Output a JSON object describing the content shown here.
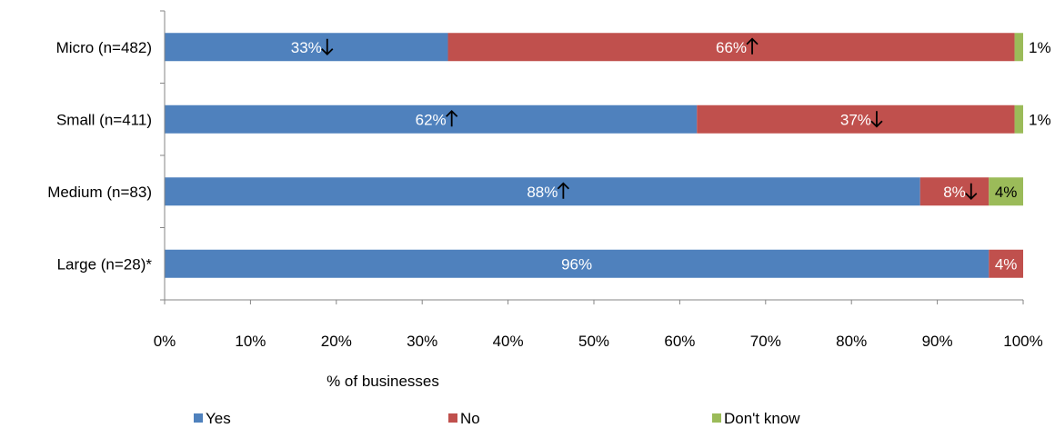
{
  "chart_data": {
    "type": "bar",
    "orientation": "horizontal",
    "stacked": true,
    "categories": [
      "Micro (n=482)",
      "Small (n=411)",
      "Medium (n=83)",
      "Large (n=28)*"
    ],
    "series": [
      {
        "name": "Yes",
        "color": "#4F81BD",
        "values": [
          33,
          62,
          88,
          96
        ],
        "labels": [
          "33%",
          "62%",
          "88%",
          "96%"
        ],
        "arrows": [
          "down",
          "up",
          "up",
          ""
        ]
      },
      {
        "name": "No",
        "color": "#C0504D",
        "values": [
          66,
          37,
          8,
          4
        ],
        "labels": [
          "66%",
          "37%",
          "8%",
          "4%"
        ],
        "arrows": [
          "up",
          "down",
          "down",
          ""
        ]
      },
      {
        "name": "Don't know",
        "color": "#9BBB59",
        "values": [
          1,
          1,
          4,
          0
        ],
        "labels": [
          "1%",
          "1%",
          "4%",
          ""
        ],
        "arrows": [
          "",
          "",
          "",
          ""
        ]
      }
    ],
    "xlim": [
      0,
      100
    ],
    "xticks": [
      "0%",
      "10%",
      "20%",
      "30%",
      "40%",
      "50%",
      "60%",
      "70%",
      "80%",
      "90%",
      "100%"
    ],
    "xlabel": "% of businesses",
    "ylabel": "",
    "title": "",
    "grid": false,
    "legend": "bottom"
  }
}
